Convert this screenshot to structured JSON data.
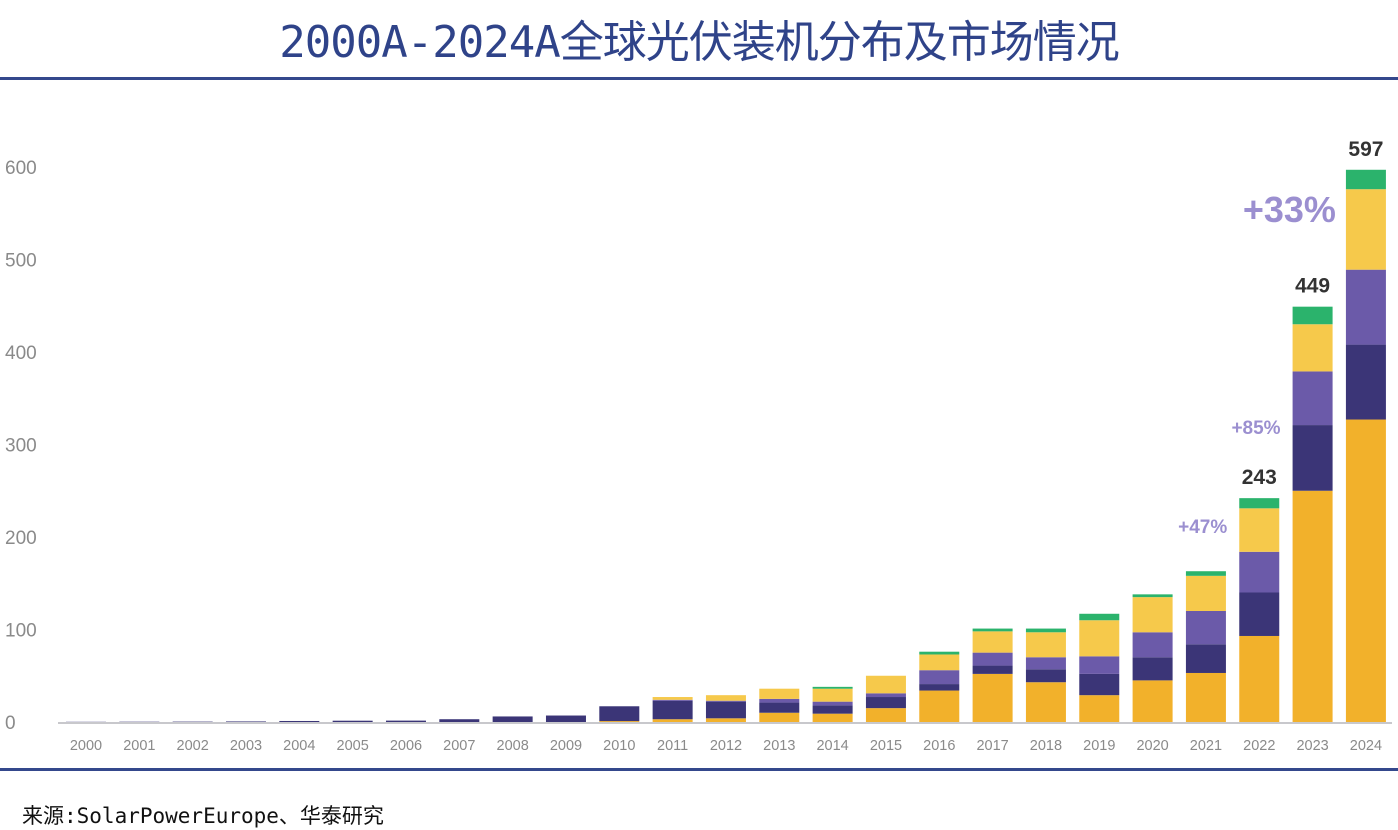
{
  "title": "2000A-2024A全球光伏装机分布及市场情况",
  "source": "来源:SolarPowerEurope、华泰研究",
  "chart_data": {
    "type": "bar",
    "stacked": true,
    "title": "2000A-2024A全球光伏装机分布及市场情况",
    "xlabel": "",
    "ylabel": "",
    "ylim": [
      0,
      600
    ],
    "yticks": [
      "0",
      "100",
      "200",
      "300",
      "400",
      "500",
      "600"
    ],
    "grid": false,
    "legend": "none",
    "categories": [
      "2000",
      "2001",
      "2002",
      "2003",
      "2004",
      "2005",
      "2006",
      "2007",
      "2008",
      "2009",
      "2010",
      "2011",
      "2012",
      "2013",
      "2014",
      "2015",
      "2016",
      "2017",
      "2018",
      "2019",
      "2020",
      "2021",
      "2022",
      "2023",
      "2024"
    ],
    "series": [
      {
        "color": "#f2b12b",
        "values": [
          0,
          0,
          0,
          0,
          0,
          0,
          0,
          0,
          0,
          0,
          1,
          3,
          4,
          10,
          9,
          15,
          34,
          52,
          43,
          29,
          45,
          53,
          93,
          250,
          327
        ]
      },
      {
        "color": "#3b3577",
        "values": [
          0.2,
          0.3,
          0.4,
          0.6,
          1.1,
          1.4,
          1.5,
          3,
          6,
          7,
          16,
          20,
          18,
          11,
          9,
          12,
          7,
          9,
          14,
          23,
          25,
          31,
          47,
          71,
          81
        ]
      },
      {
        "color": "#6b5aa9",
        "values": [
          0,
          0,
          0,
          0,
          0,
          0,
          0,
          0,
          0,
          0,
          0,
          1,
          1,
          4,
          4,
          4,
          15,
          14,
          13,
          19,
          27,
          36,
          44,
          58,
          81
        ]
      },
      {
        "color": "#f6c94b",
        "values": [
          0,
          0,
          0,
          0,
          0,
          0,
          0,
          0,
          0,
          0,
          0,
          3,
          6,
          11,
          14,
          19,
          17,
          23,
          27,
          39,
          38,
          38,
          47,
          51,
          87
        ]
      },
      {
        "color": "#2bb36c",
        "values": [
          0,
          0,
          0,
          0,
          0,
          0,
          0,
          0,
          0,
          0,
          0,
          0,
          0,
          0,
          2,
          0,
          3,
          3,
          4,
          7,
          3,
          5,
          11,
          19,
          21
        ]
      }
    ],
    "data_labels": [
      {
        "category": "2022",
        "text": "243"
      },
      {
        "category": "2023",
        "text": "449"
      },
      {
        "category": "2024",
        "text": "597"
      }
    ],
    "annotations": [
      {
        "category": "2022",
        "text": "+47%"
      },
      {
        "category": "2023",
        "text": "+85%"
      },
      {
        "category": "2024",
        "text": "+33%"
      }
    ],
    "annotation_color": "#9b8fd0"
  }
}
